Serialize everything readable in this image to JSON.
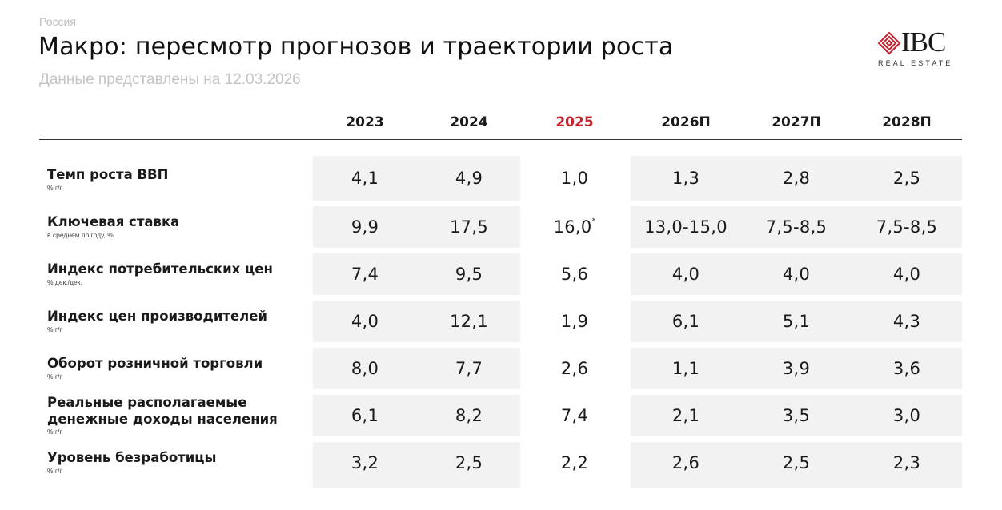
{
  "header": {
    "region": "Россия",
    "title": "Макро: пересмотр прогнозов и траектории роста",
    "subtitle": "Данные представлены на 12.03.2026"
  },
  "logo": {
    "main": "IBC",
    "sub": "REAL ESTATE",
    "accent_color": "#c8202d"
  },
  "table": {
    "columns": [
      "2023",
      "2024",
      "2025",
      "2026П",
      "2027П",
      "2028П"
    ],
    "highlight_column": "2025",
    "highlight_color": "#c8202d",
    "rows": [
      {
        "label": "Темп роста ВВП",
        "unit": "% г/г",
        "values": [
          "4,1",
          "4,9",
          "1,0",
          "1,3",
          "2,8",
          "2,5"
        ]
      },
      {
        "label": "Ключевая ставка",
        "unit": "в среднем по году, %",
        "values": [
          "9,9",
          "17,5",
          "16,0",
          "13,0-15,0",
          "7,5-8,5",
          "7,5-8,5"
        ],
        "note_mark": "*"
      },
      {
        "label": "Индекс потребительских цен",
        "unit": "% дек./дек.",
        "values": [
          "7,4",
          "9,5",
          "5,6",
          "4,0",
          "4,0",
          "4,0"
        ]
      },
      {
        "label": "Индекс цен производителей",
        "unit": "% г/г",
        "values": [
          "4,0",
          "12,1",
          "1,9",
          "6,1",
          "5,1",
          "4,3"
        ]
      },
      {
        "label": "Оборот розничной торговли",
        "unit": "% г/г",
        "values": [
          "8,0",
          "7,7",
          "2,6",
          "1,1",
          "3,9",
          "3,6"
        ]
      },
      {
        "label": "Реальные располагаемые денежные доходы населения",
        "label_line1": "Реальные располагаемые",
        "label_line2": "денежные доходы населения",
        "unit": "% г/г",
        "values": [
          "6,1",
          "8,2",
          "7,4",
          "2,1",
          "3,5",
          "3,0"
        ]
      },
      {
        "label": "Уровень безработицы",
        "unit": "% г/г",
        "values": [
          "3,2",
          "2,5",
          "2,2",
          "2,6",
          "2,5",
          "2,3"
        ]
      }
    ]
  }
}
